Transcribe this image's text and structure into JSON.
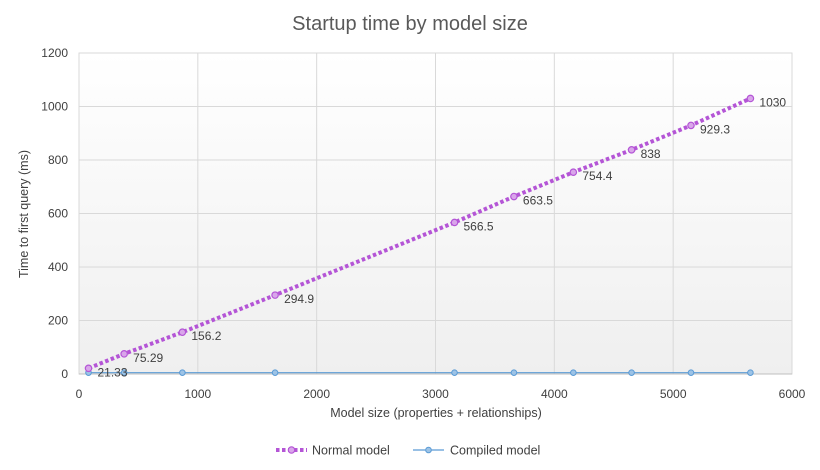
{
  "chart_data": {
    "type": "scatter",
    "title": "Startup time by model size",
    "xlabel": "Model size (properties + relationships)",
    "ylabel": "Time to first query (ms)",
    "xlim": [
      0,
      6000
    ],
    "ylim": [
      0,
      1200
    ],
    "xticks": [
      0,
      1000,
      2000,
      3000,
      4000,
      5000,
      6000
    ],
    "yticks": [
      0,
      200,
      400,
      600,
      800,
      1000,
      1200
    ],
    "grid": true,
    "legend_position": "bottom",
    "series": [
      {
        "name": "Normal model",
        "color": "#B455D6",
        "style": "dotted-line-with-markers",
        "points": [
          {
            "x": 80,
            "y": 21.33,
            "label": "21.33"
          },
          {
            "x": 380,
            "y": 75.29,
            "label": "75.29"
          },
          {
            "x": 870,
            "y": 156.2,
            "label": "156.2"
          },
          {
            "x": 1650,
            "y": 294.9,
            "label": "294.9"
          },
          {
            "x": 3160,
            "y": 566.5,
            "label": "566.5"
          },
          {
            "x": 3660,
            "y": 663.5,
            "label": "663.5"
          },
          {
            "x": 4160,
            "y": 754.4,
            "label": "754.4"
          },
          {
            "x": 4650,
            "y": 838,
            "label": "838"
          },
          {
            "x": 5150,
            "y": 929.3,
            "label": "929.3"
          },
          {
            "x": 5650,
            "y": 1030,
            "label": "1030"
          }
        ]
      },
      {
        "name": "Compiled model",
        "color": "#5B9BD5",
        "style": "line-with-markers",
        "points": [
          {
            "x": 80,
            "y": 5
          },
          {
            "x": 380,
            "y": 5
          },
          {
            "x": 870,
            "y": 5
          },
          {
            "x": 1650,
            "y": 5
          },
          {
            "x": 3160,
            "y": 5
          },
          {
            "x": 3660,
            "y": 5
          },
          {
            "x": 4160,
            "y": 5
          },
          {
            "x": 4650,
            "y": 5
          },
          {
            "x": 5150,
            "y": 5
          },
          {
            "x": 5650,
            "y": 5
          }
        ]
      }
    ]
  }
}
